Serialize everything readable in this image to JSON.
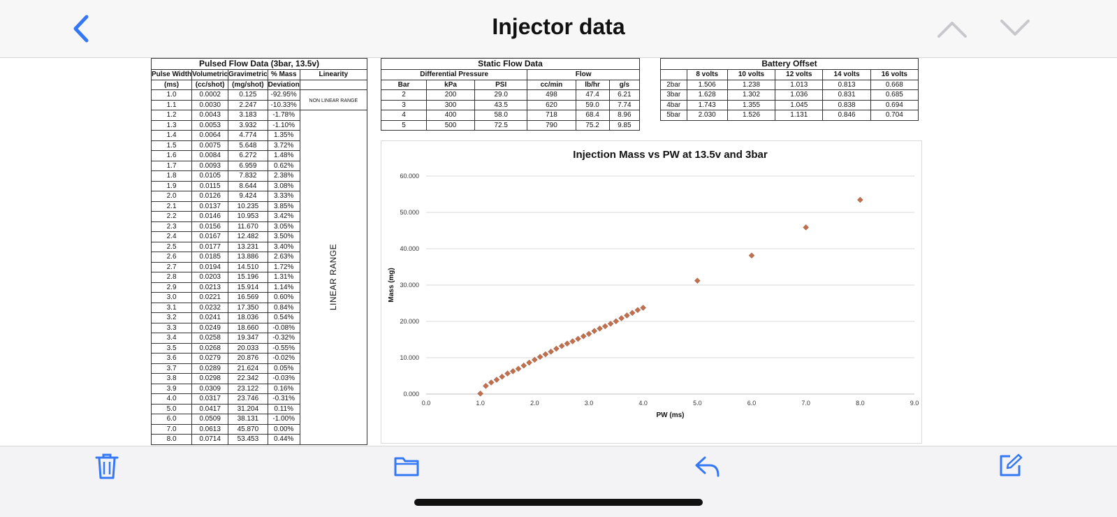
{
  "header": {
    "title": "Injector data"
  },
  "icons": {
    "back": "chevron-left-icon",
    "prev": "chevron-up-icon",
    "next": "chevron-down-icon",
    "trash": "trash-icon",
    "folder": "folder-icon",
    "reply": "reply-icon",
    "compose": "compose-icon"
  },
  "colors": {
    "accent": "#3478f6",
    "marker": "#c0704e"
  },
  "pulsed": {
    "caption": "Pulsed Flow Data (3bar, 13.5v)",
    "headers": [
      [
        "Pulse Width",
        "(ms)"
      ],
      [
        "Volumetric",
        "(cc/shot)"
      ],
      [
        "Gravimetric",
        "(mg/shot)"
      ],
      [
        "% Mass",
        "Deviation"
      ],
      [
        "Linearity",
        ""
      ]
    ],
    "nonlinear_label": "NON LINEAR RANGE",
    "linear_label": "LINEAR RANGE",
    "rows": [
      [
        "1.0",
        "0.0002",
        "0.125",
        "-92.95%"
      ],
      [
        "1.1",
        "0.0030",
        "2.247",
        "-10.33%"
      ],
      [
        "1.2",
        "0.0043",
        "3.183",
        "-1.78%"
      ],
      [
        "1.3",
        "0.0053",
        "3.932",
        "-1.10%"
      ],
      [
        "1.4",
        "0.0064",
        "4.774",
        "1.35%"
      ],
      [
        "1.5",
        "0.0075",
        "5.648",
        "3.72%"
      ],
      [
        "1.6",
        "0.0084",
        "6.272",
        "1.48%"
      ],
      [
        "1.7",
        "0.0093",
        "6.959",
        "0.62%"
      ],
      [
        "1.8",
        "0.0105",
        "7.832",
        "2.38%"
      ],
      [
        "1.9",
        "0.0115",
        "8.644",
        "3.08%"
      ],
      [
        "2.0",
        "0.0126",
        "9.424",
        "3.33%"
      ],
      [
        "2.1",
        "0.0137",
        "10.235",
        "3.85%"
      ],
      [
        "2.2",
        "0.0146",
        "10.953",
        "3.42%"
      ],
      [
        "2.3",
        "0.0156",
        "11.670",
        "3.05%"
      ],
      [
        "2.4",
        "0.0167",
        "12.482",
        "3.50%"
      ],
      [
        "2.5",
        "0.0177",
        "13.231",
        "3.40%"
      ],
      [
        "2.6",
        "0.0185",
        "13.886",
        "2.63%"
      ],
      [
        "2.7",
        "0.0194",
        "14.510",
        "1.72%"
      ],
      [
        "2.8",
        "0.0203",
        "15.196",
        "1.31%"
      ],
      [
        "2.9",
        "0.0213",
        "15.914",
        "1.14%"
      ],
      [
        "3.0",
        "0.0221",
        "16.569",
        "0.60%"
      ],
      [
        "3.1",
        "0.0232",
        "17.350",
        "0.84%"
      ],
      [
        "3.2",
        "0.0241",
        "18.036",
        "0.54%"
      ],
      [
        "3.3",
        "0.0249",
        "18.660",
        "-0.08%"
      ],
      [
        "3.4",
        "0.0258",
        "19.347",
        "-0.32%"
      ],
      [
        "3.5",
        "0.0268",
        "20.033",
        "-0.55%"
      ],
      [
        "3.6",
        "0.0279",
        "20.876",
        "-0.02%"
      ],
      [
        "3.7",
        "0.0289",
        "21.624",
        "0.05%"
      ],
      [
        "3.8",
        "0.0298",
        "22.342",
        "-0.03%"
      ],
      [
        "3.9",
        "0.0309",
        "23.122",
        "0.16%"
      ],
      [
        "4.0",
        "0.0317",
        "23.746",
        "-0.31%"
      ],
      [
        "5.0",
        "0.0417",
        "31.204",
        "0.11%"
      ],
      [
        "6.0",
        "0.0509",
        "38.131",
        "-1.00%"
      ],
      [
        "7.0",
        "0.0613",
        "45.870",
        "0.00%"
      ],
      [
        "8.0",
        "0.0714",
        "53.453",
        "0.44%"
      ]
    ]
  },
  "static": {
    "caption": "Static Flow Data",
    "group_headers": [
      "Differential Pressure",
      "Flow"
    ],
    "headers": [
      "Bar",
      "kPa",
      "PSI",
      "cc/min",
      "lb/hr",
      "g/s"
    ],
    "rows": [
      [
        "2",
        "200",
        "29.0",
        "498",
        "47.4",
        "6.21"
      ],
      [
        "3",
        "300",
        "43.5",
        "620",
        "59.0",
        "7.74"
      ],
      [
        "4",
        "400",
        "58.0",
        "718",
        "68.4",
        "8.96"
      ],
      [
        "5",
        "500",
        "72.5",
        "790",
        "75.2",
        "9.85"
      ]
    ]
  },
  "battery": {
    "caption": "Battery Offset",
    "headers": [
      "",
      "8 volts",
      "10 volts",
      "12 volts",
      "14 volts",
      "16 volts"
    ],
    "rows": [
      [
        "2bar",
        "1.506",
        "1.238",
        "1.013",
        "0.813",
        "0.668"
      ],
      [
        "3bar",
        "1.628",
        "1.302",
        "1.036",
        "0.831",
        "0.685"
      ],
      [
        "4bar",
        "1.743",
        "1.355",
        "1.045",
        "0.838",
        "0.694"
      ],
      [
        "5bar",
        "2.030",
        "1.526",
        "1.131",
        "0.846",
        "0.704"
      ]
    ]
  },
  "chart_data": {
    "type": "scatter",
    "title": "Injection Mass vs PW at 13.5v and 3bar",
    "xlabel": "PW (ms)",
    "ylabel": "Mass (mg)",
    "xlim": [
      0,
      9
    ],
    "ylim": [
      0,
      60
    ],
    "xticks": [
      "0.0",
      "1.0",
      "2.0",
      "3.0",
      "4.0",
      "5.0",
      "6.0",
      "7.0",
      "8.0",
      "9.0"
    ],
    "yticks": [
      "0.000",
      "10.000",
      "20.000",
      "30.000",
      "40.000",
      "50.000",
      "60.000"
    ],
    "grid": true,
    "marker": "diamond",
    "x": [
      1.0,
      1.1,
      1.2,
      1.3,
      1.4,
      1.5,
      1.6,
      1.7,
      1.8,
      1.9,
      2.0,
      2.1,
      2.2,
      2.3,
      2.4,
      2.5,
      2.6,
      2.7,
      2.8,
      2.9,
      3.0,
      3.1,
      3.2,
      3.3,
      3.4,
      3.5,
      3.6,
      3.7,
      3.8,
      3.9,
      4.0,
      5.0,
      6.0,
      7.0,
      8.0
    ],
    "y": [
      0.125,
      2.247,
      3.183,
      3.932,
      4.774,
      5.648,
      6.272,
      6.959,
      7.832,
      8.644,
      9.424,
      10.235,
      10.953,
      11.67,
      12.482,
      13.231,
      13.886,
      14.51,
      15.196,
      15.914,
      16.569,
      17.35,
      18.036,
      18.66,
      19.347,
      20.033,
      20.876,
      21.624,
      22.342,
      23.122,
      23.746,
      31.204,
      38.131,
      45.87,
      53.453
    ]
  }
}
